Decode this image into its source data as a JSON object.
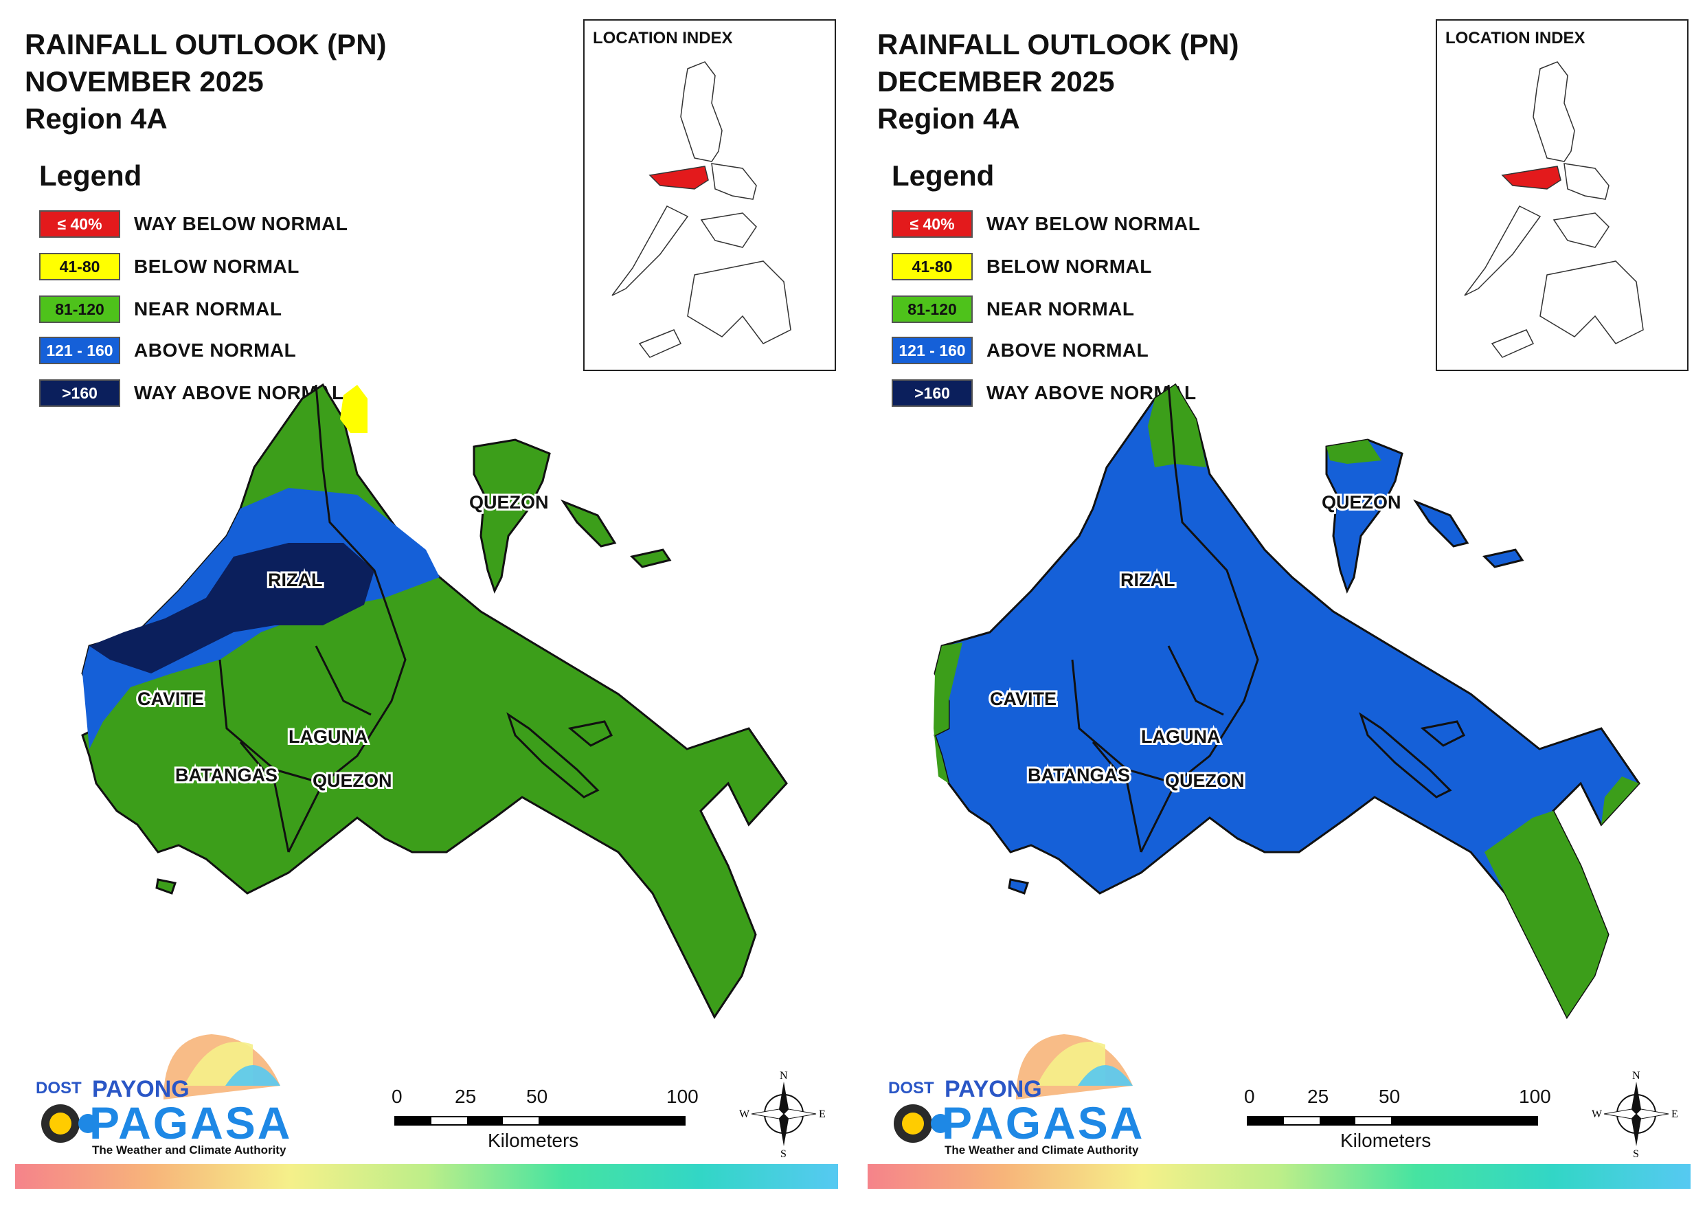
{
  "panels": [
    {
      "title_line1": "RAINFALL OUTLOOK (PN)",
      "title_line2": "NOVEMBER 2025",
      "title_line3": "Region 4A",
      "location_index_title": "LOCATION INDEX",
      "legend_title": "Legend",
      "legend": [
        {
          "range": "≤ 40%",
          "label": "WAY BELOW NORMAL",
          "color": "#e31a1c",
          "text_color": "#ffffff"
        },
        {
          "range": "41-80",
          "label": "BELOW NORMAL",
          "color": "#ffff00",
          "text_color": "#111111"
        },
        {
          "range": "81-120",
          "label": "NEAR NORMAL",
          "color": "#4ec21b",
          "text_color": "#111111"
        },
        {
          "range": "121 - 160",
          "label": "ABOVE NORMAL",
          "color": "#1560d8",
          "text_color": "#ffffff"
        },
        {
          "range": ">160",
          "label": "WAY ABOVE NORMAL",
          "color": "#0b1f5c",
          "text_color": "#ffffff"
        }
      ],
      "provinces": {
        "rizal": "RIZAL",
        "cavite": "CAVITE",
        "laguna": "LAGUNA",
        "batangas": "BATANGAS",
        "quezon_south": "QUEZON",
        "quezon_north": "QUEZON"
      },
      "scale": {
        "n0": "0",
        "n25": "25",
        "n50": "50",
        "n100": "100",
        "unit": "Kilometers"
      },
      "compass": {
        "n": "N",
        "s": "S",
        "e": "E",
        "w": "W"
      },
      "logo": {
        "dost": "DOST",
        "payong": "PAYONG",
        "pagasa": "PAGASA",
        "tagline": "The Weather and Climate Authority"
      }
    },
    {
      "title_line1": "RAINFALL OUTLOOK (PN)",
      "title_line2": "DECEMBER 2025",
      "title_line3": "Region 4A",
      "location_index_title": "LOCATION INDEX",
      "legend_title": "Legend",
      "legend": [
        {
          "range": "≤ 40%",
          "label": "WAY BELOW NORMAL",
          "color": "#e31a1c",
          "text_color": "#ffffff"
        },
        {
          "range": "41-80",
          "label": "BELOW NORMAL",
          "color": "#ffff00",
          "text_color": "#111111"
        },
        {
          "range": "81-120",
          "label": "NEAR NORMAL",
          "color": "#4ec21b",
          "text_color": "#111111"
        },
        {
          "range": "121 - 160",
          "label": "ABOVE NORMAL",
          "color": "#1560d8",
          "text_color": "#ffffff"
        },
        {
          "range": ">160",
          "label": "WAY ABOVE NORMAL",
          "color": "#0b1f5c",
          "text_color": "#ffffff"
        }
      ],
      "provinces": {
        "rizal": "RIZAL",
        "cavite": "CAVITE",
        "laguna": "LAGUNA",
        "batangas": "BATANGAS",
        "quezon_south": "QUEZON",
        "quezon_north": "QUEZON"
      },
      "scale": {
        "n0": "0",
        "n25": "25",
        "n50": "50",
        "n100": "100",
        "unit": "Kilometers"
      },
      "compass": {
        "n": "N",
        "s": "S",
        "e": "E",
        "w": "W"
      },
      "logo": {
        "dost": "DOST",
        "payong": "PAYONG",
        "pagasa": "PAGASA",
        "tagline": "The Weather and Climate Authority"
      }
    }
  ],
  "map_colors": {
    "green": "#3c9e1a",
    "blue": "#1560d8",
    "navy": "#0b1f5c",
    "yellow": "#ffff00",
    "red": "#e31a1c"
  }
}
